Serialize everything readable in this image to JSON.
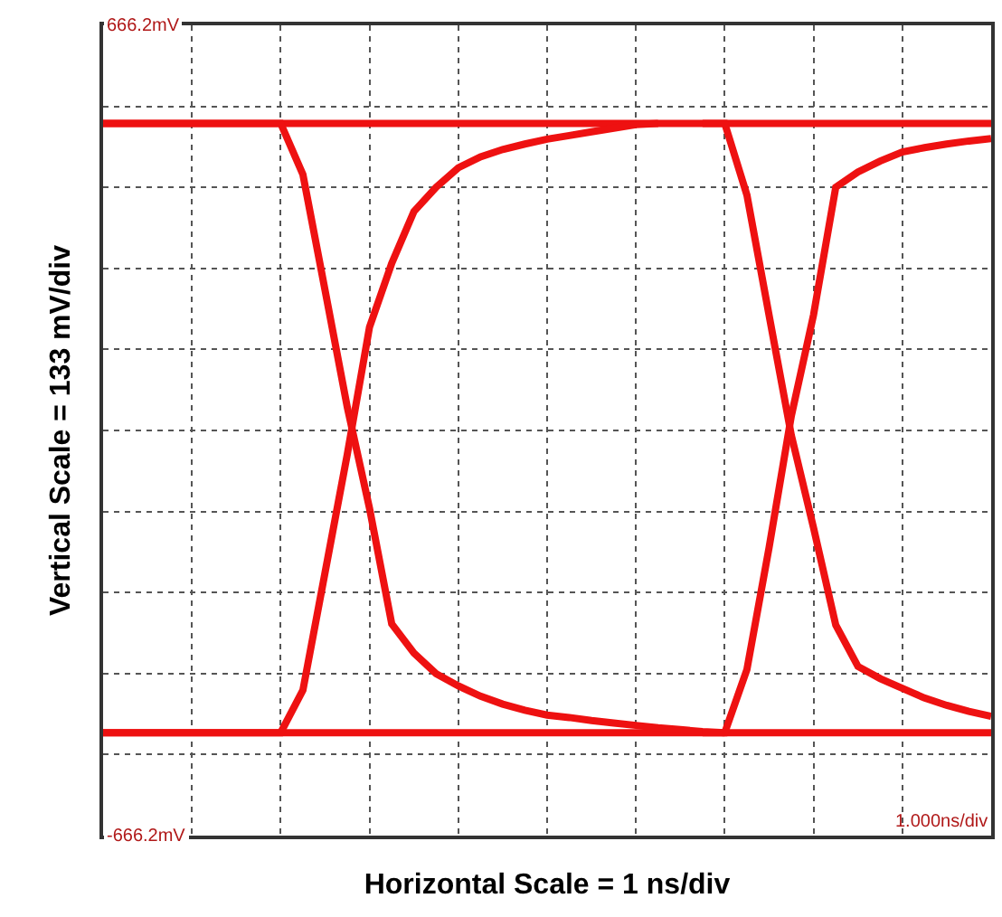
{
  "chart_data": {
    "type": "line",
    "xlabel": "Horizontal Scale = 1 ns/div",
    "ylabel": "Vertical Scale = 133 mV/div",
    "annotations": [
      "1.000ns/div"
    ],
    "categories": [
      null,
      null,
      null,
      null,
      null,
      null,
      null,
      null,
      null,
      null,
      null,
      null,
      null,
      null,
      null,
      null,
      null,
      null,
      null,
      null,
      null,
      null,
      null,
      null,
      null,
      null,
      null,
      null,
      null,
      null,
      null,
      null,
      null,
      null,
      null,
      null,
      null,
      null,
      null,
      null,
      null
    ],
    "ylim": [
      -666.2,
      666.2
    ],
    "yticks": [
      {
        "value": -666.2,
        "label": "-666.2mV"
      },
      {
        "value": -533,
        "label": null
      },
      {
        "value": -399.7,
        "label": null
      },
      {
        "value": -266.5,
        "label": null
      },
      {
        "value": -133.2,
        "label": null
      },
      {
        "value": 0,
        "label": null
      },
      {
        "value": 133.2,
        "label": null
      },
      {
        "value": 266.5,
        "label": null
      },
      {
        "value": 399.7,
        "label": null
      },
      {
        "value": 533,
        "label": null
      },
      {
        "value": 666.2,
        "label": "666.2mV"
      }
    ],
    "tick_labels": "y",
    "grid": true,
    "marker": "none",
    "line_style": "solid",
    "series": [
      {
        "color": "#ee1111",
        "values": [
          505,
          505,
          505,
          505,
          505,
          505,
          505,
          505,
          505,
          505,
          505,
          505,
          505,
          505,
          505,
          505,
          505,
          505,
          505,
          505,
          505,
          505,
          505,
          505,
          505,
          505,
          505,
          505,
          505,
          505,
          505,
          505,
          505,
          505,
          505,
          505,
          505,
          505,
          505,
          505,
          505
        ]
      },
      {
        "color": "#ee1111",
        "values": [
          -497,
          -497,
          -497,
          -497,
          -497,
          -497,
          -497,
          -497,
          -497,
          -497,
          -497,
          -497,
          -497,
          -497,
          -497,
          -497,
          -497,
          -497,
          -497,
          -497,
          -497,
          -497,
          -497,
          -497,
          -497,
          -497,
          -497,
          -497,
          -497,
          -497,
          -497,
          -497,
          -497,
          -497,
          -497,
          -497,
          -497,
          -497,
          -497,
          -497,
          -497
        ]
      },
      {
        "color": "#ee1111",
        "values": [
          505,
          505,
          505,
          505,
          505,
          505,
          505,
          505,
          505,
          421,
          230,
          38,
          -128,
          -318,
          -366,
          -400,
          -420,
          -437,
          -450,
          -460,
          -468,
          -472,
          -477,
          -481,
          -485,
          -489,
          -492,
          -495,
          -497,
          null,
          null,
          null,
          null,
          null,
          null,
          null,
          null,
          null,
          null,
          null,
          null
        ]
      },
      {
        "color": "#ee1111",
        "values": [
          -497,
          -497,
          -497,
          -497,
          -497,
          -497,
          -497,
          -497,
          -497,
          -427,
          -233,
          -39,
          170,
          275,
          360,
          400,
          432,
          450,
          462,
          471,
          479,
          485,
          491,
          497,
          503,
          505,
          null,
          null,
          null,
          null,
          null,
          null,
          null,
          null,
          null,
          null,
          null,
          null,
          null,
          null,
          null
        ]
      },
      {
        "color": "#ee1111",
        "values": [
          null,
          null,
          null,
          null,
          null,
          null,
          null,
          null,
          null,
          null,
          null,
          null,
          null,
          null,
          null,
          null,
          null,
          null,
          null,
          null,
          null,
          null,
          null,
          null,
          null,
          null,
          null,
          505,
          505,
          387,
          189,
          -8,
          -160,
          -320,
          -388,
          -408,
          -424,
          -440,
          -452,
          -462,
          -470
        ]
      },
      {
        "color": "#ee1111",
        "values": [
          null,
          null,
          null,
          null,
          null,
          null,
          null,
          null,
          null,
          null,
          null,
          null,
          null,
          null,
          null,
          null,
          null,
          null,
          null,
          null,
          null,
          null,
          null,
          null,
          null,
          null,
          null,
          -497,
          -497,
          -393,
          -192,
          24,
          190,
          400,
          425,
          443,
          458,
          465,
          471,
          476,
          480
        ]
      }
    ]
  }
}
